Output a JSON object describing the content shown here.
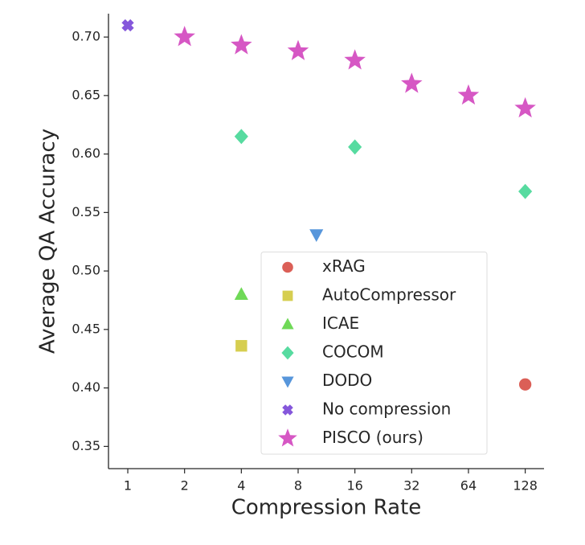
{
  "chart_data": {
    "type": "scatter",
    "xlabel": "Compression Rate",
    "ylabel": "Average QA Accuracy",
    "xscale": "log2",
    "xlim": [
      0.79,
      161
    ],
    "ylim": [
      0.331,
      0.72
    ],
    "xticks": [
      1,
      2,
      4,
      8,
      16,
      32,
      64,
      128
    ],
    "yticks": [
      {
        "value": 0.35,
        "label": "0.35"
      },
      {
        "value": 0.4,
        "label": "0.40"
      },
      {
        "value": 0.45,
        "label": "0.45"
      },
      {
        "value": 0.5,
        "label": "0.50"
      },
      {
        "value": 0.55,
        "label": "0.55"
      },
      {
        "value": 0.6,
        "label": "0.60"
      },
      {
        "value": 0.65,
        "label": "0.65"
      },
      {
        "value": 0.7,
        "label": "0.70"
      }
    ],
    "legend": "lower right",
    "series": [
      {
        "name": "xRAG",
        "color": "#db5f57",
        "marker": "circle",
        "x": [
          128
        ],
        "values": [
          0.403
        ]
      },
      {
        "name": "AutoCompressor",
        "color": "#d6ce50",
        "marker": "square",
        "x": [
          4
        ],
        "values": [
          0.436
        ]
      },
      {
        "name": "ICAE",
        "color": "#6fd957",
        "marker": "triangle-up",
        "x": [
          4
        ],
        "values": [
          0.48
        ]
      },
      {
        "name": "COCOM",
        "color": "#57dba0",
        "marker": "diamond",
        "x": [
          4,
          16,
          128
        ],
        "values": [
          0.615,
          0.606,
          0.568
        ]
      },
      {
        "name": "DODO",
        "color": "#5796db",
        "marker": "triangle-down",
        "x": [
          10
        ],
        "values": [
          0.531
        ]
      },
      {
        "name": "No compression",
        "color": "#8557db",
        "marker": "x",
        "x": [
          1
        ],
        "values": [
          0.71
        ]
      },
      {
        "name": "PISCO (ours)",
        "color": "#d657c4",
        "marker": "star",
        "x": [
          2,
          4,
          8,
          16,
          32,
          64,
          128
        ],
        "values": [
          0.7,
          0.693,
          0.688,
          0.68,
          0.66,
          0.65,
          0.639
        ]
      }
    ]
  }
}
